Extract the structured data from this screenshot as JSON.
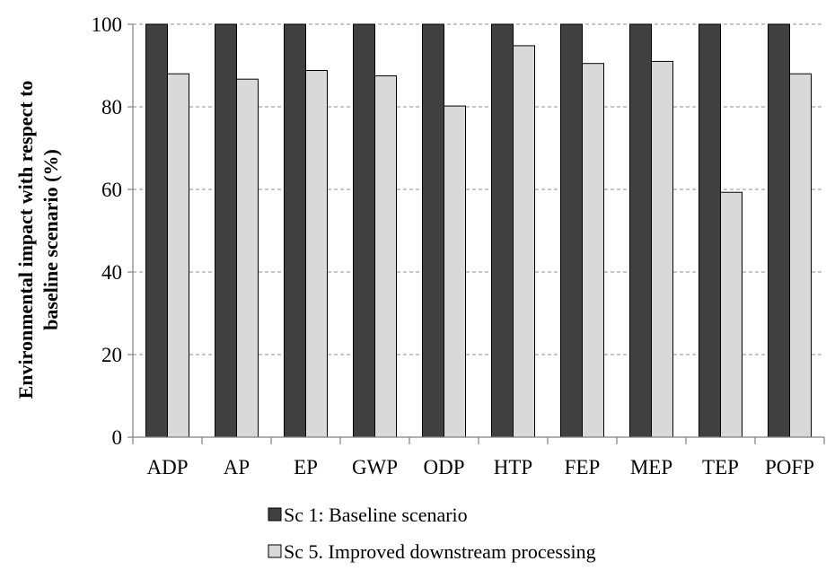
{
  "chart_data": {
    "type": "bar",
    "title": "",
    "xlabel": "",
    "ylabel_lines": [
      "Environmental impact with respect to",
      "baseline scenario (%)"
    ],
    "categories": [
      "ADP",
      "AP",
      "EP",
      "GWP",
      "ODP",
      "HTP",
      "FEP",
      "MEP",
      "TEP",
      "POFP"
    ],
    "series": [
      {
        "name": "Sc 1: Baseline scenario",
        "color": "#404040",
        "values": [
          100,
          100,
          100,
          100,
          100,
          100,
          100,
          100,
          100,
          100
        ]
      },
      {
        "name": "Sc 5. Improved downstream processing",
        "color": "#d9d9d9",
        "values": [
          88,
          86.7,
          88.8,
          87.5,
          80.2,
          94.8,
          90.5,
          91,
          59.3,
          88
        ]
      }
    ],
    "ylim": [
      0,
      100
    ],
    "yticks": [
      0,
      20,
      40,
      60,
      80,
      100
    ],
    "grid": true,
    "grid_style": "dashed",
    "legend_position": "bottom"
  }
}
